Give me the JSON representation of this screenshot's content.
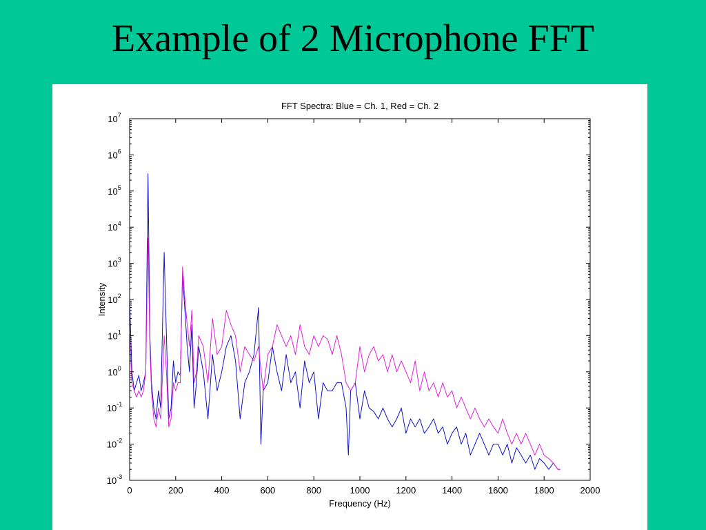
{
  "slide": {
    "title": "Example of 2 Microphone FFT"
  },
  "colors": {
    "background": "#00c896",
    "panel": "#ffffff",
    "series1": "#1010c8",
    "series2": "#e020d8"
  },
  "chart_data": {
    "type": "line",
    "title": "FFT Spectra: Blue = Ch. 1, Red = Ch. 2",
    "xlabel": "Frequency (Hz)",
    "ylabel": "Intensity",
    "xlim": [
      0,
      2000
    ],
    "ylim": [
      0.001,
      10000000
    ],
    "yscale": "log",
    "grid": false,
    "legend": "none",
    "x_ticks": [
      "0",
      "200",
      "400",
      "600",
      "800",
      "1000",
      "1200",
      "1400",
      "1600",
      "1800",
      "2000"
    ],
    "y_ticks": [
      {
        "base": "10",
        "exp": "-3"
      },
      {
        "base": "10",
        "exp": "-2"
      },
      {
        "base": "10",
        "exp": "-1"
      },
      {
        "base": "10",
        "exp": "0"
      },
      {
        "base": "10",
        "exp": "1"
      },
      {
        "base": "10",
        "exp": "2"
      },
      {
        "base": "10",
        "exp": "3"
      },
      {
        "base": "10",
        "exp": "4"
      },
      {
        "base": "10",
        "exp": "5"
      },
      {
        "base": "10",
        "exp": "6"
      },
      {
        "base": "10",
        "exp": "7"
      }
    ],
    "series": [
      {
        "color": "#1010c8",
        "x": [
          0,
          10,
          20,
          30,
          40,
          50,
          60,
          70,
          80,
          88,
          95,
          105,
          115,
          125,
          135,
          150,
          160,
          170,
          180,
          190,
          200,
          210,
          220,
          230,
          240,
          250,
          260,
          270,
          280,
          290,
          300,
          320,
          340,
          360,
          380,
          400,
          420,
          440,
          460,
          480,
          500,
          520,
          540,
          560,
          570,
          580,
          600,
          620,
          640,
          660,
          680,
          700,
          720,
          740,
          760,
          780,
          800,
          820,
          840,
          860,
          880,
          900,
          920,
          940,
          950,
          960,
          980,
          1000,
          1020,
          1040,
          1060,
          1080,
          1100,
          1120,
          1140,
          1160,
          1180,
          1200,
          1220,
          1240,
          1260,
          1280,
          1300,
          1320,
          1340,
          1360,
          1380,
          1400,
          1420,
          1440,
          1460,
          1480,
          1500,
          1520,
          1540,
          1560,
          1580,
          1600,
          1620,
          1640,
          1660,
          1680,
          1700,
          1720,
          1740,
          1760,
          1780,
          1800,
          1820,
          1840,
          1860,
          1870
        ],
        "values": [
          100,
          1,
          0.3,
          0.5,
          0.8,
          0.3,
          0.5,
          1,
          300000,
          10,
          0.5,
          0.1,
          0.05,
          0.3,
          0.1,
          2000,
          10,
          0.05,
          0.1,
          2,
          0.5,
          1,
          0.8,
          500,
          50,
          5,
          1,
          20,
          0.1,
          0.5,
          5,
          1,
          0.05,
          3,
          0.3,
          1,
          5,
          10,
          2,
          0.05,
          0.5,
          1,
          3,
          60,
          0.01,
          0.3,
          0.5,
          5,
          1,
          0.3,
          3,
          0.5,
          1,
          0.1,
          2,
          0.5,
          1,
          0.05,
          0.5,
          0.3,
          0.3,
          0.5,
          0.5,
          0.1,
          0.005,
          0.3,
          0.5,
          0.05,
          0.3,
          0.1,
          0.08,
          0.05,
          0.1,
          0.05,
          0.03,
          0.05,
          0.1,
          0.02,
          0.05,
          0.03,
          0.05,
          0.02,
          0.03,
          0.05,
          0.02,
          0.03,
          0.01,
          0.02,
          0.03,
          0.01,
          0.02,
          0.005,
          0.01,
          0.02,
          0.01,
          0.005,
          0.01,
          0.01,
          0.005,
          0.01,
          0.003,
          0.008,
          0.005,
          0.003,
          0.005,
          0.002,
          0.004,
          0.003,
          0.002,
          0.003,
          0.002,
          0.002
        ]
      },
      {
        "color": "#e020d8",
        "x": [
          0,
          10,
          20,
          30,
          40,
          50,
          60,
          70,
          80,
          88,
          95,
          105,
          115,
          125,
          135,
          150,
          160,
          170,
          180,
          190,
          200,
          210,
          220,
          230,
          240,
          250,
          260,
          270,
          280,
          290,
          300,
          320,
          340,
          360,
          380,
          400,
          420,
          440,
          460,
          480,
          500,
          520,
          540,
          560,
          580,
          600,
          620,
          640,
          660,
          680,
          700,
          720,
          740,
          760,
          780,
          800,
          820,
          840,
          860,
          880,
          900,
          920,
          940,
          960,
          980,
          1000,
          1020,
          1040,
          1060,
          1080,
          1100,
          1120,
          1140,
          1160,
          1180,
          1200,
          1220,
          1240,
          1260,
          1280,
          1300,
          1320,
          1340,
          1360,
          1380,
          1400,
          1420,
          1440,
          1460,
          1480,
          1500,
          1520,
          1540,
          1560,
          1580,
          1600,
          1620,
          1640,
          1660,
          1680,
          1700,
          1720,
          1740,
          1760,
          1780,
          1800,
          1820,
          1840,
          1860,
          1870
        ],
        "values": [
          10,
          0.5,
          0.3,
          0.2,
          0.3,
          0.2,
          0.3,
          1,
          5000,
          5,
          0.3,
          0.05,
          0.03,
          0.1,
          0.05,
          10,
          1,
          0.03,
          0.05,
          0.5,
          0.3,
          0.5,
          0.5,
          800,
          100,
          20,
          5,
          50,
          0.5,
          1,
          10,
          5,
          0.5,
          30,
          3,
          5,
          50,
          20,
          10,
          1,
          5,
          3,
          2,
          5,
          0.3,
          3,
          5,
          20,
          10,
          5,
          10,
          3,
          20,
          5,
          3,
          10,
          5,
          10,
          8,
          3,
          10,
          3,
          0.5,
          0.3,
          0.5,
          5,
          1,
          3,
          5,
          2,
          3,
          1,
          3,
          1,
          2,
          1,
          0.5,
          2,
          0.3,
          1,
          0.3,
          0.5,
          0.2,
          0.5,
          0.2,
          0.3,
          0.1,
          0.2,
          0.1,
          0.05,
          0.1,
          0.05,
          0.03,
          0.05,
          0.03,
          0.02,
          0.05,
          0.02,
          0.01,
          0.02,
          0.01,
          0.02,
          0.01,
          0.005,
          0.01,
          0.005,
          0.004,
          0.003,
          0.002,
          0.002
        ]
      }
    ]
  }
}
